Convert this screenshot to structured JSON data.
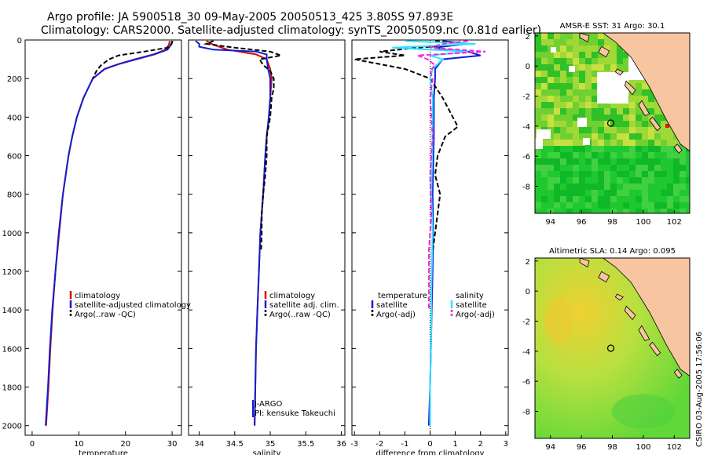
{
  "header": {
    "line1": "Argo profile: JA 5900518_30 09-May-2005 20050513_425 3.805S 97.893E",
    "line2": "Climatology: CARS2000. Satellite-adjusted climatology: synTS_20050509.nc (0.81d earlier)"
  },
  "footer_stamp": "CSIRO 03-Aug-2005 17:56:06",
  "colors": {
    "red": "#e00000",
    "blue": "#1020d0",
    "black": "#000000",
    "cyan": "#30e0ff",
    "magenta": "#ff20e0",
    "land": "#f7c59f",
    "ocean_green": "#18c030"
  },
  "chart_data": [
    {
      "id": "temperature",
      "type": "line",
      "xlabel": "temperature",
      "ylabel": "",
      "xlim": [
        -1.5,
        32
      ],
      "ylim": [
        2050,
        0
      ],
      "xticks": [
        0,
        10,
        20,
        30
      ],
      "yticks": [
        0,
        200,
        400,
        600,
        800,
        1000,
        1200,
        1400,
        1600,
        1800,
        2000
      ],
      "legend": [
        "climatology",
        "satellite-adjusted climatology",
        "Argo(..raw -QC)"
      ],
      "series": [
        {
          "name": "climatology",
          "color": "red",
          "dash": "",
          "depth": [
            5,
            25,
            50,
            75,
            100,
            125,
            150,
            200,
            250,
            300,
            400,
            500,
            600,
            800,
            1000,
            1200,
            1400,
            1600,
            1800,
            2000
          ],
          "values": [
            29.5,
            29.3,
            28.6,
            26.0,
            22.0,
            18.5,
            15.5,
            13.0,
            12.0,
            11.0,
            9.6,
            8.6,
            7.8,
            6.6,
            5.8,
            5.0,
            4.4,
            3.9,
            3.5,
            3.0
          ]
        },
        {
          "name": "satellite-adjusted climatology",
          "color": "blue",
          "dash": "",
          "depth": [
            5,
            25,
            50,
            75,
            100,
            125,
            150,
            200,
            250,
            300,
            400,
            500,
            600,
            800,
            1000,
            1200,
            1400,
            1600,
            1800,
            2000
          ],
          "values": [
            30.0,
            29.8,
            29.0,
            26.2,
            22.3,
            18.6,
            15.6,
            13.0,
            12.0,
            11.0,
            9.6,
            8.6,
            7.8,
            6.6,
            5.7,
            5.0,
            4.3,
            3.8,
            3.4,
            2.9
          ]
        },
        {
          "name": "Argo(..raw -QC)",
          "color": "black",
          "dash": "6 3",
          "depth": [
            5,
            20,
            40,
            60,
            80,
            100,
            130,
            160,
            200
          ],
          "values": [
            30.1,
            29.9,
            29.0,
            24.0,
            18.5,
            16.5,
            14.8,
            13.8,
            13.0
          ]
        }
      ]
    },
    {
      "id": "salinity",
      "type": "line",
      "xlabel": "salinity",
      "ylabel": "",
      "xlim": [
        33.85,
        36.05
      ],
      "ylim": [
        2050,
        0
      ],
      "xticks": [
        34,
        34.5,
        35,
        35.5,
        36
      ],
      "legend": [
        "climatology",
        "satellite adj. clim.",
        "Argo(..raw -QC)"
      ],
      "annotations": [
        "J-ARGO",
        "PI: kensuke Takeuchi"
      ],
      "series": [
        {
          "name": "climatology",
          "color": "red",
          "dash": "",
          "depth": [
            5,
            25,
            50,
            75,
            100,
            150,
            200,
            300,
            400,
            500,
            600,
            800,
            1000,
            1200,
            1400,
            1600,
            1800,
            2000
          ],
          "values": [
            34.1,
            34.2,
            34.4,
            34.8,
            34.95,
            35.0,
            35.02,
            35.0,
            34.98,
            34.95,
            34.93,
            34.9,
            34.86,
            34.84,
            34.82,
            34.8,
            34.79,
            34.78
          ]
        },
        {
          "name": "satellite adj. clim.",
          "color": "blue",
          "dash": "",
          "depth": [
            5,
            20,
            35,
            50,
            60,
            75,
            100,
            150,
            200,
            300,
            400,
            500,
            600,
            800,
            1000,
            1200,
            1400,
            1600,
            1800,
            2000
          ],
          "values": [
            33.95,
            34.0,
            34.0,
            34.2,
            34.8,
            34.95,
            34.95,
            34.97,
            35.0,
            35.0,
            34.98,
            34.95,
            34.93,
            34.9,
            34.86,
            34.84,
            34.82,
            34.8,
            34.79,
            34.78
          ]
        },
        {
          "name": "Argo(..raw -QC)",
          "color": "black",
          "dash": "6 3",
          "depth": [
            5,
            20,
            40,
            60,
            80,
            100,
            130,
            160,
            200,
            250,
            300,
            400,
            500,
            600,
            700,
            800,
            900,
            1000,
            1100
          ],
          "values": [
            34.2,
            34.1,
            34.5,
            35.0,
            35.15,
            34.85,
            34.9,
            35.0,
            35.05,
            35.05,
            35.02,
            35.0,
            34.95,
            34.95,
            34.93,
            34.9,
            34.88,
            34.88,
            34.87
          ]
        }
      ]
    },
    {
      "id": "difference",
      "type": "line",
      "xlabel": "difference from climatology",
      "ylabel": "",
      "xlim": [
        -3.1,
        3.1
      ],
      "ylim": [
        2050,
        0
      ],
      "xticks": [
        -3,
        -2,
        -1,
        0,
        1,
        2,
        3
      ],
      "legend_left_title": "temperature",
      "legend_right_title": "salinity",
      "legend_left": [
        "satellite",
        "Argo(-adj)"
      ],
      "legend_right": [
        "satellite",
        "Argo(-adj)"
      ],
      "series": [
        {
          "name": "temperature satellite",
          "color": "blue",
          "dash": "",
          "depth": [
            5,
            20,
            30,
            40,
            50,
            60,
            80,
            100,
            150,
            200,
            300,
            500,
            800,
            1000,
            1200,
            1500,
            1800,
            2000
          ],
          "values": [
            0.5,
            1.5,
            0.8,
            0.2,
            0.5,
            1.5,
            2.0,
            0.5,
            0.2,
            0.2,
            0.15,
            0.15,
            0.1,
            0.12,
            0.1,
            0.05,
            0.0,
            -0.05
          ]
        },
        {
          "name": "temperature Argo(-adj)",
          "color": "black",
          "dash": "6 3",
          "depth": [
            5,
            20,
            40,
            60,
            80,
            100,
            150,
            200,
            300,
            400,
            450,
            500,
            600,
            700,
            800,
            900,
            1000,
            1100
          ],
          "values": [
            0.2,
            1.5,
            -0.5,
            -2.0,
            -1.0,
            -3.0,
            -1.0,
            0.0,
            0.5,
            0.9,
            1.1,
            0.6,
            0.3,
            0.2,
            0.4,
            0.3,
            0.2,
            0.1
          ]
        },
        {
          "name": "salinity satellite",
          "color": "cyan",
          "dash": "",
          "depth": [
            5,
            20,
            40,
            60,
            80,
            100,
            150,
            200,
            300,
            500,
            800,
            1000,
            1300,
            1500,
            1800,
            2000
          ],
          "values": [
            -1.0,
            1.8,
            -1.5,
            1.5,
            0.0,
            0.5,
            0.1,
            0.0,
            0.1,
            0.1,
            0.05,
            0.1,
            0.05,
            0.05,
            0.0,
            0.0
          ]
        },
        {
          "name": "salinity Argo(-adj)",
          "color": "magenta",
          "dash": "6 3",
          "depth": [
            5,
            20,
            40,
            60,
            80,
            100,
            130,
            160,
            200,
            300,
            500,
            700,
            900,
            1100,
            1300,
            1400
          ],
          "values": [
            1.5,
            0.5,
            0.0,
            2.2,
            -0.5,
            -0.1,
            0.2,
            0.0,
            0.1,
            0.0,
            0.1,
            0.0,
            0.05,
            -0.05,
            -0.05,
            -0.05
          ]
        }
      ]
    },
    {
      "id": "sst_map",
      "type": "heatmap",
      "title": "AMSR-E SST: 31 Argo: 30.1",
      "xlim": [
        93,
        103
      ],
      "ylim": [
        -9.8,
        2.2
      ],
      "xticks": [
        94,
        96,
        98,
        100,
        102
      ],
      "yticks": [
        2,
        0,
        -2,
        -4,
        -6,
        -8
      ],
      "marker": {
        "lon": 97.9,
        "lat": -3.8
      }
    },
    {
      "id": "sla_map",
      "type": "heatmap",
      "title": "Altimetric SLA: 0.14 Argo: 0.095",
      "xlim": [
        93,
        103
      ],
      "ylim": [
        -9.8,
        2.2
      ],
      "xticks": [
        94,
        96,
        98,
        100,
        102
      ],
      "yticks": [
        2,
        0,
        -2,
        -4,
        -6,
        -8
      ],
      "marker": {
        "lon": 97.9,
        "lat": -3.8
      }
    }
  ]
}
